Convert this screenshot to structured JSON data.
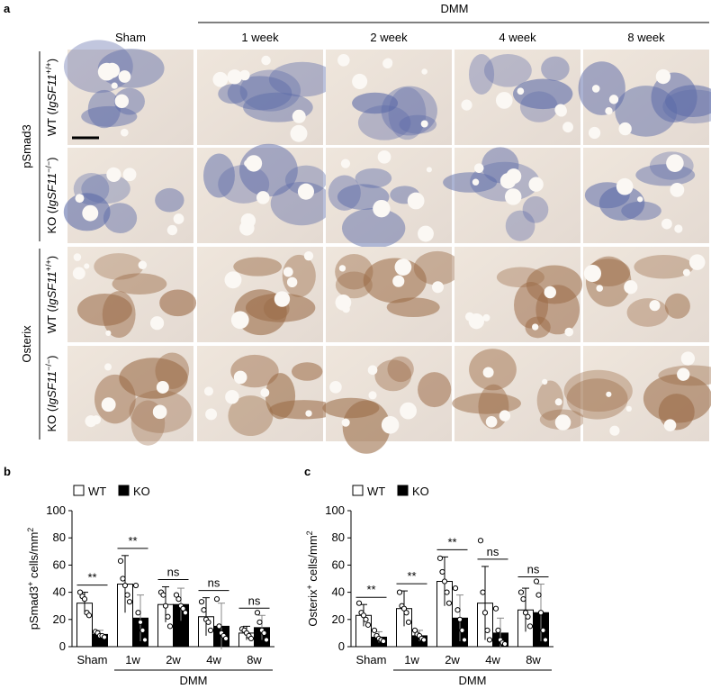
{
  "panel_a": {
    "label": "a",
    "group": "DMM",
    "columns": [
      "Sham",
      "1 week",
      "2 week",
      "4 week",
      "8 week"
    ],
    "stains": [
      "pSmad3",
      "Osterix"
    ],
    "genotypes": [
      [
        {
          "text": "WT ("
        },
        {
          "text": "IgSF11",
          "italic": true
        },
        {
          "text": "+/+",
          "sup": true
        },
        {
          "text": ")"
        }
      ],
      [
        {
          "text": "KO ("
        },
        {
          "text": "IgSF11",
          "italic": true
        },
        {
          "text": "−/−",
          "sup": true
        },
        {
          "text": ")"
        }
      ]
    ]
  },
  "chart_data": [
    {
      "type": "bar",
      "panel_label": "b",
      "y_label": [
        {
          "text": "pSmad3"
        },
        {
          "text": "+",
          "sup": true
        },
        {
          "text": " cells/mm"
        },
        {
          "text": "2",
          "sup": true
        }
      ],
      "categories": [
        "Sham",
        "1w",
        "2w",
        "4w",
        "8w"
      ],
      "group_label": "DMM",
      "series": [
        {
          "name": "WT",
          "color": "#ffffff",
          "values": [
            32,
            46,
            31,
            22,
            10
          ],
          "errors": [
            8,
            21,
            13,
            14,
            5
          ],
          "points": [
            [
              40,
              37,
              35,
              25,
              23
            ],
            [
              63,
              50,
              45,
              38,
              33
            ],
            [
              40,
              38,
              30,
              22,
              15
            ],
            [
              33,
              27,
              20,
              18,
              12
            ],
            [
              13,
              12,
              10,
              8,
              6
            ]
          ]
        },
        {
          "name": "KO",
          "color": "#000000",
          "values": [
            9,
            21,
            31,
            15,
            14
          ],
          "errors": [
            3,
            17,
            12,
            17,
            9
          ],
          "points": [
            [
              11,
              10,
              8,
              8,
              7
            ],
            [
              45,
              25,
              18,
              12,
              5
            ],
            [
              38,
              35,
              30,
              28,
              25
            ],
            [
              35,
              15,
              10,
              8,
              6
            ],
            [
              25,
              18,
              12,
              10,
              5
            ]
          ]
        }
      ],
      "significance": [
        "**",
        "**",
        "ns",
        "ns",
        "ns"
      ],
      "ylim": [
        0,
        100
      ],
      "yticks": [
        0,
        20,
        40,
        60,
        80,
        100
      ]
    },
    {
      "type": "bar",
      "panel_label": "c",
      "y_label": [
        {
          "text": "Osterix"
        },
        {
          "text": "+",
          "sup": true
        },
        {
          "text": " cells/mm"
        },
        {
          "text": "2",
          "sup": true
        }
      ],
      "categories": [
        "Sham",
        "1w",
        "2w",
        "4w",
        "8w"
      ],
      "group_label": "DMM",
      "series": [
        {
          "name": "WT",
          "color": "#ffffff",
          "values": [
            23,
            28,
            48,
            32,
            27
          ],
          "errors": [
            8,
            13,
            18,
            27,
            16
          ],
          "points": [
            [
              32,
              25,
              23,
              20,
              16
            ],
            [
              40,
              30,
              28,
              25,
              18
            ],
            [
              65,
              55,
              48,
              40,
              32
            ],
            [
              78,
              40,
              25,
              12,
              5
            ],
            [
              40,
              35,
              25,
              22,
              15
            ]
          ]
        },
        {
          "name": "KO",
          "color": "#000000",
          "values": [
            7,
            8,
            21,
            10,
            25
          ],
          "errors": [
            4,
            4,
            17,
            11,
            21
          ],
          "points": [
            [
              12,
              8,
              6,
              5,
              4
            ],
            [
              12,
              9,
              8,
              6,
              5
            ],
            [
              43,
              27,
              20,
              12,
              5
            ],
            [
              28,
              12,
              5,
              3,
              2
            ],
            [
              48,
              38,
              25,
              12,
              5
            ]
          ]
        }
      ],
      "significance": [
        "**",
        "**",
        "**",
        "ns",
        "ns"
      ],
      "ylim": [
        0,
        100
      ],
      "yticks": [
        0,
        20,
        40,
        60,
        80,
        100
      ]
    }
  ]
}
